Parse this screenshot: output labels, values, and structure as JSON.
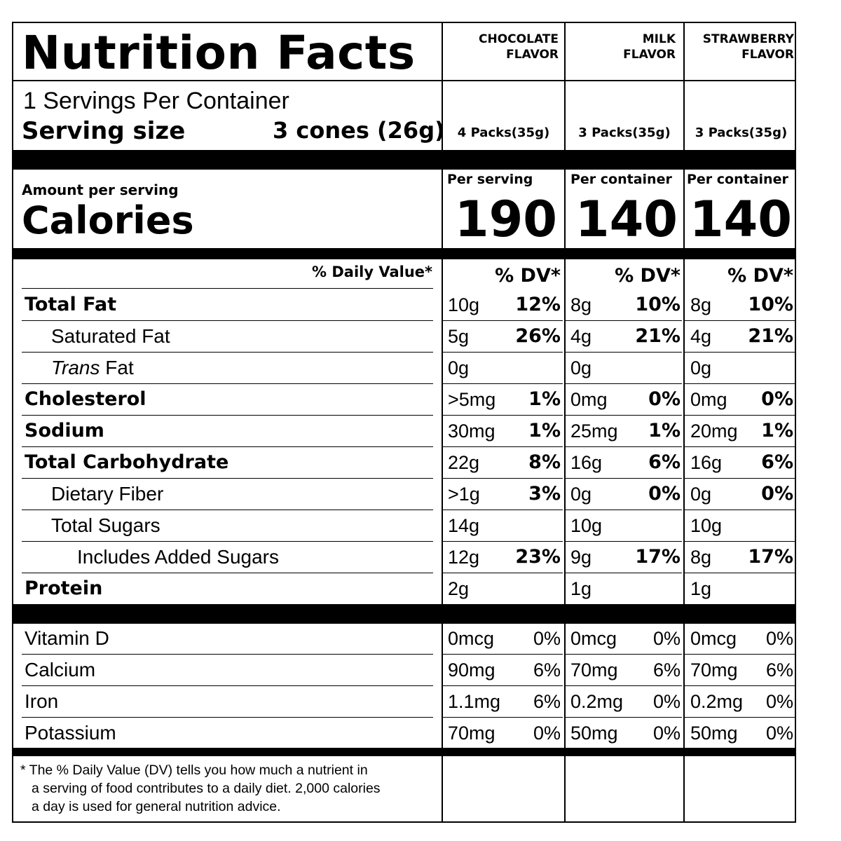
{
  "title": "Nutrition Facts",
  "servings_per_container": "1 Servings Per Container",
  "serving_size_label": "Serving size",
  "serving_size_value": "3 cones (26g)",
  "columns": [
    {
      "line1": "CHOCOLATE",
      "line2": "FLAVOR",
      "packs": "4 Packs(35g)",
      "basis": "Per serving",
      "calories": "190",
      "dv_header": "% DV*"
    },
    {
      "line1": "MILK",
      "line2": "FLAVOR",
      "packs": "3 Packs(35g)",
      "basis": "Per container",
      "calories": "140",
      "dv_header": "% DV*"
    },
    {
      "line1": "STRAWBERRY",
      "line2": "FLAVOR",
      "packs": "3 Packs(35g)",
      "basis": "Per container",
      "calories": "140",
      "dv_header": "% DV*"
    }
  ],
  "amount_per_serving": "Amount per serving",
  "calories_label": "Calories",
  "daily_value_header": "% Daily Value*",
  "nutrients": [
    {
      "label": "Total Fat",
      "values": [
        [
          "10g",
          "12%"
        ],
        [
          "8g",
          "10%"
        ],
        [
          "8g",
          "10%"
        ]
      ]
    },
    {
      "label": "Saturated Fat",
      "values": [
        [
          "5g",
          "26%"
        ],
        [
          "4g",
          "21%"
        ],
        [
          "4g",
          "21%"
        ]
      ]
    },
    {
      "label_italic": "Trans",
      "label_rest": " Fat",
      "values": [
        [
          "0g",
          ""
        ],
        [
          "0g",
          ""
        ],
        [
          "0g",
          ""
        ]
      ]
    },
    {
      "label": "Cholesterol",
      "values": [
        [
          ">5mg",
          "1%"
        ],
        [
          "0mg",
          "0%"
        ],
        [
          "0mg",
          "0%"
        ]
      ]
    },
    {
      "label": "Sodium",
      "values": [
        [
          "30mg",
          "1%"
        ],
        [
          "25mg",
          "1%"
        ],
        [
          "20mg",
          "1%"
        ]
      ]
    },
    {
      "label": "Total Carbohydrate",
      "values": [
        [
          "22g",
          "8%"
        ],
        [
          "16g",
          "6%"
        ],
        [
          "16g",
          "6%"
        ]
      ]
    },
    {
      "label": "Dietary Fiber",
      "values": [
        [
          ">1g",
          "3%"
        ],
        [
          "0g",
          "0%"
        ],
        [
          "0g",
          "0%"
        ]
      ]
    },
    {
      "label": "Total Sugars",
      "values": [
        [
          "14g",
          ""
        ],
        [
          "10g",
          ""
        ],
        [
          "10g",
          ""
        ]
      ]
    },
    {
      "label": "Includes  Added Sugars",
      "values": [
        [
          "12g",
          "23%"
        ],
        [
          "9g",
          "17%"
        ],
        [
          "8g",
          "17%"
        ]
      ]
    },
    {
      "label": "Protein",
      "values": [
        [
          "2g",
          ""
        ],
        [
          "1g",
          ""
        ],
        [
          "1g",
          ""
        ]
      ]
    }
  ],
  "vitamins": [
    {
      "label": "Vitamin D",
      "values": [
        [
          "0mcg",
          "0%"
        ],
        [
          "0mcg",
          "0%"
        ],
        [
          "0mcg",
          "0%"
        ]
      ]
    },
    {
      "label": "Calcium",
      "values": [
        [
          "90mg",
          "6%"
        ],
        [
          "70mg",
          "6%"
        ],
        [
          "70mg",
          "6%"
        ]
      ]
    },
    {
      "label": "Iron",
      "values": [
        [
          "1.1mg",
          "6%"
        ],
        [
          "0.2mg",
          "0%"
        ],
        [
          "0.2mg",
          "0%"
        ]
      ]
    },
    {
      "label": "Potassium",
      "values": [
        [
          "70mg",
          "0%"
        ],
        [
          "50mg",
          "0%"
        ],
        [
          "50mg",
          "0%"
        ]
      ]
    }
  ],
  "footnote": {
    "line1": "* The % Daily Value (DV) tells you how much a nutrient in",
    "line2": "a serving of food contributes to a daily diet. 2,000 calories",
    "line3": "a day is used for general nutrition advice."
  }
}
